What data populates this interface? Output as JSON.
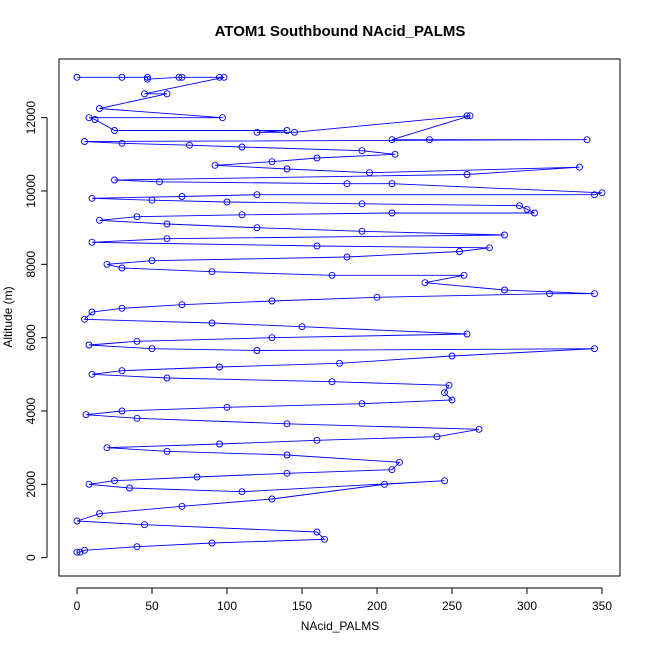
{
  "chart_data": {
    "type": "line",
    "title": "ATOM1 Southbound NAcid_PALMS",
    "xlabel": "NAcid_PALMS",
    "ylabel": "Altitude (m)",
    "xlim": [
      -12,
      362
    ],
    "ylim": [
      -500,
      13600
    ],
    "x_ticks": [
      0,
      50,
      100,
      150,
      200,
      250,
      300,
      350
    ],
    "y_ticks": [
      0,
      2000,
      4000,
      6000,
      8000,
      10000,
      12000
    ],
    "grid": false,
    "legend": "none",
    "marker": "open-circle",
    "series_color": "#0000ff",
    "note_points_are_estimated": true,
    "series": [
      {
        "x": [
          0,
          30,
          47,
          47,
          68,
          70,
          95,
          98,
          45,
          60,
          15,
          97,
          8,
          12,
          25,
          140,
          120,
          145,
          260,
          262,
          210,
          235,
          340,
          5,
          30,
          75,
          110,
          190,
          212,
          160,
          130,
          92,
          140,
          195,
          335,
          260,
          25,
          55,
          180,
          210,
          350,
          345,
          120,
          70,
          10,
          50,
          100,
          190,
          295,
          300,
          305,
          210,
          110,
          40,
          15,
          60,
          120,
          190,
          285,
          60,
          10,
          160,
          275,
          255,
          180,
          50,
          20,
          30,
          90,
          170,
          258,
          232,
          285,
          345,
          315,
          200,
          130,
          70,
          30,
          10,
          5,
          90,
          150,
          260,
          130,
          40,
          8,
          50,
          120,
          345,
          250,
          175,
          95,
          30,
          10,
          60,
          170,
          248,
          245,
          250,
          190,
          100,
          30,
          6,
          40,
          140,
          268,
          240,
          160,
          95,
          20,
          60,
          140,
          215,
          210,
          140,
          80,
          25,
          8,
          35,
          110,
          245,
          205,
          130,
          70,
          15,
          0,
          45,
          160,
          165,
          90,
          40,
          5,
          2,
          0
        ],
        "y": [
          13100,
          13100,
          13100,
          13050,
          13100,
          13100,
          13100,
          13100,
          12650,
          12650,
          12250,
          12000,
          12000,
          11950,
          11650,
          11650,
          11600,
          11600,
          12050,
          12050,
          11400,
          11400,
          11400,
          11350,
          11300,
          11250,
          11200,
          11100,
          11000,
          10900,
          10800,
          10700,
          10600,
          10500,
          10650,
          10450,
          10300,
          10250,
          10200,
          10200,
          9950,
          9900,
          9900,
          9850,
          9800,
          9750,
          9700,
          9650,
          9600,
          9500,
          9400,
          9400,
          9350,
          9300,
          9200,
          9100,
          9000,
          8900,
          8800,
          8700,
          8600,
          8500,
          8450,
          8350,
          8200,
          8100,
          8000,
          7900,
          7800,
          7700,
          7700,
          7500,
          7300,
          7200,
          7200,
          7100,
          7000,
          6900,
          6800,
          6700,
          6500,
          6400,
          6300,
          6100,
          6000,
          5900,
          5800,
          5700,
          5650,
          5700,
          5500,
          5300,
          5200,
          5100,
          5000,
          4900,
          4800,
          4700,
          4500,
          4300,
          4200,
          4100,
          4000,
          3900,
          3800,
          3650,
          3500,
          3300,
          3200,
          3100,
          3000,
          2900,
          2800,
          2600,
          2400,
          2300,
          2200,
          2100,
          2000,
          1900,
          1800,
          2100,
          2000,
          1600,
          1400,
          1200,
          1000,
          900,
          700,
          500,
          400,
          300,
          200,
          150,
          150
        ]
      }
    ]
  }
}
